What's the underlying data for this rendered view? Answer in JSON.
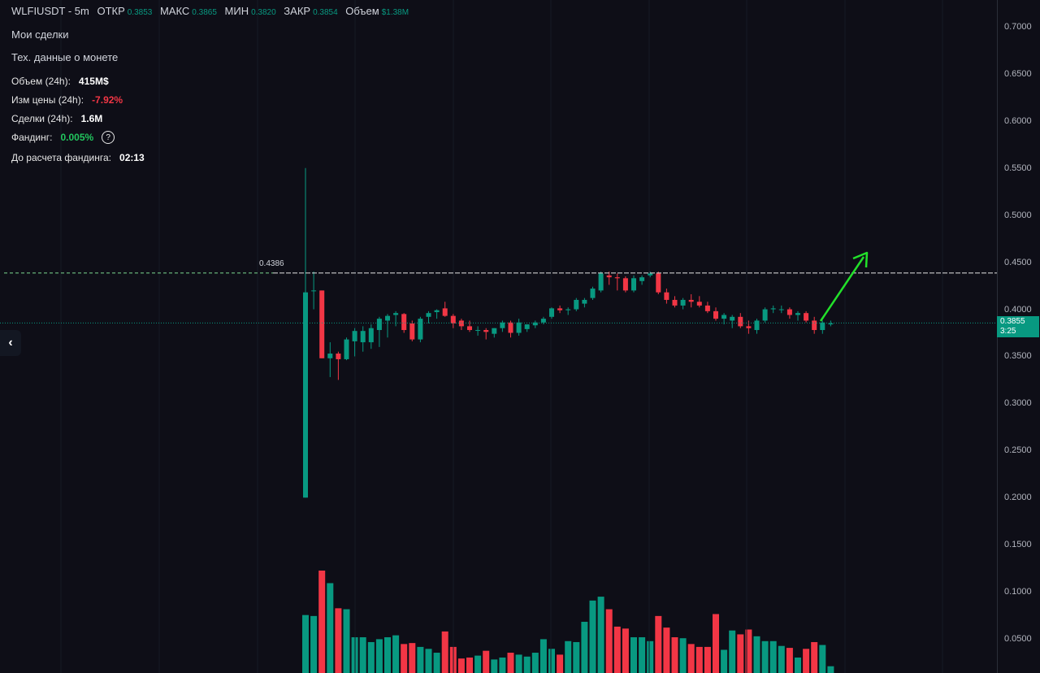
{
  "header": {
    "symbol": "WLFIUSDT - 5m",
    "open_label": "ОТКР",
    "open_value": "0.3853",
    "high_label": "МАКС",
    "high_value": "0.3865",
    "low_label": "МИН",
    "low_value": "0.3820",
    "close_label": "ЗАКР",
    "close_value": "0.3854",
    "volume_label": "Объем",
    "volume_value": "$1.38M"
  },
  "menu": {
    "my_trades": "Мои сделки",
    "coin_data": "Тех. данные о монете"
  },
  "stats": {
    "volume_label": "Объем (24h):",
    "volume_value": "415M$",
    "change_label": "Изм цены  (24h):",
    "change_value": "-7.92%",
    "trades_label": "Сделки (24h):",
    "trades_value": "1.6M",
    "funding_label": "Фандинг:",
    "funding_value": "0.005%",
    "funding_help": "?",
    "countdown_label": "До расчета фандинга:",
    "countdown_value": "02:13"
  },
  "collapse_icon": "chevron-left-icon",
  "line_label": "0.4386",
  "last_price": {
    "price": "0.3855",
    "timer": "3:25"
  },
  "colors": {
    "up": "#089981",
    "down": "#f23645",
    "arrow": "#22e02a",
    "background": "#0e0e17"
  },
  "chart_data": {
    "type": "candlestick",
    "timeframe": "5m",
    "y_ticks": [
      "0.7000",
      "0.6500",
      "0.6000",
      "0.5500",
      "0.5000",
      "0.4500",
      "0.4000",
      "0.3500",
      "0.3000",
      "0.2500",
      "0.2000",
      "0.1500",
      "0.1000",
      "0.0500"
    ],
    "ylim": [
      0.0,
      0.72
    ],
    "horizontal_line": 0.4386,
    "current_price": 0.3855,
    "candles": [
      {
        "o": 0.2,
        "h": 0.55,
        "l": 0.2,
        "c": 0.418,
        "v": 0.06
      },
      {
        "o": 0.42,
        "h": 0.44,
        "l": 0.4,
        "c": 0.42,
        "v": 0.059
      },
      {
        "o": 0.42,
        "h": 0.42,
        "l": 0.348,
        "c": 0.348,
        "v": 0.106
      },
      {
        "o": 0.348,
        "h": 0.365,
        "l": 0.328,
        "c": 0.353,
        "v": 0.093
      },
      {
        "o": 0.353,
        "h": 0.355,
        "l": 0.325,
        "c": 0.347,
        "v": 0.067
      },
      {
        "o": 0.347,
        "h": 0.37,
        "l": 0.346,
        "c": 0.368,
        "v": 0.066
      },
      {
        "o": 0.366,
        "h": 0.38,
        "l": 0.35,
        "c": 0.377,
        "v": 0.037
      },
      {
        "o": 0.365,
        "h": 0.382,
        "l": 0.355,
        "c": 0.377,
        "v": 0.037
      },
      {
        "o": 0.365,
        "h": 0.384,
        "l": 0.358,
        "c": 0.38,
        "v": 0.032
      },
      {
        "o": 0.378,
        "h": 0.392,
        "l": 0.36,
        "c": 0.39,
        "v": 0.035
      },
      {
        "o": 0.388,
        "h": 0.395,
        "l": 0.37,
        "c": 0.393,
        "v": 0.037
      },
      {
        "o": 0.394,
        "h": 0.398,
        "l": 0.382,
        "c": 0.396,
        "v": 0.039
      },
      {
        "o": 0.395,
        "h": 0.396,
        "l": 0.375,
        "c": 0.378,
        "v": 0.03
      },
      {
        "o": 0.385,
        "h": 0.388,
        "l": 0.366,
        "c": 0.368,
        "v": 0.031
      },
      {
        "o": 0.368,
        "h": 0.392,
        "l": 0.365,
        "c": 0.39,
        "v": 0.027
      },
      {
        "o": 0.392,
        "h": 0.398,
        "l": 0.385,
        "c": 0.396,
        "v": 0.025
      },
      {
        "o": 0.397,
        "h": 0.4,
        "l": 0.39,
        "c": 0.399,
        "v": 0.021
      },
      {
        "o": 0.401,
        "h": 0.408,
        "l": 0.392,
        "c": 0.393,
        "v": 0.043
      },
      {
        "o": 0.393,
        "h": 0.395,
        "l": 0.38,
        "c": 0.385,
        "v": 0.027
      },
      {
        "o": 0.388,
        "h": 0.39,
        "l": 0.378,
        "c": 0.382,
        "v": 0.015
      },
      {
        "o": 0.382,
        "h": 0.388,
        "l": 0.376,
        "c": 0.378,
        "v": 0.016
      },
      {
        "o": 0.378,
        "h": 0.382,
        "l": 0.372,
        "c": 0.378,
        "v": 0.018
      },
      {
        "o": 0.378,
        "h": 0.38,
        "l": 0.368,
        "c": 0.376,
        "v": 0.023
      },
      {
        "o": 0.374,
        "h": 0.38,
        "l": 0.37,
        "c": 0.38,
        "v": 0.014
      },
      {
        "o": 0.38,
        "h": 0.388,
        "l": 0.376,
        "c": 0.386,
        "v": 0.016
      },
      {
        "o": 0.386,
        "h": 0.388,
        "l": 0.37,
        "c": 0.375,
        "v": 0.021
      },
      {
        "o": 0.375,
        "h": 0.39,
        "l": 0.372,
        "c": 0.386,
        "v": 0.019
      },
      {
        "o": 0.379,
        "h": 0.384,
        "l": 0.376,
        "c": 0.384,
        "v": 0.017
      },
      {
        "o": 0.383,
        "h": 0.388,
        "l": 0.38,
        "c": 0.386,
        "v": 0.021
      },
      {
        "o": 0.386,
        "h": 0.392,
        "l": 0.384,
        "c": 0.39,
        "v": 0.035
      },
      {
        "o": 0.392,
        "h": 0.402,
        "l": 0.39,
        "c": 0.401,
        "v": 0.025
      },
      {
        "o": 0.401,
        "h": 0.404,
        "l": 0.396,
        "c": 0.399,
        "v": 0.019
      },
      {
        "o": 0.399,
        "h": 0.402,
        "l": 0.394,
        "c": 0.4,
        "v": 0.033
      },
      {
        "o": 0.4,
        "h": 0.412,
        "l": 0.398,
        "c": 0.41,
        "v": 0.032
      },
      {
        "o": 0.406,
        "h": 0.412,
        "l": 0.402,
        "c": 0.41,
        "v": 0.053
      },
      {
        "o": 0.412,
        "h": 0.424,
        "l": 0.41,
        "c": 0.422,
        "v": 0.075
      },
      {
        "o": 0.42,
        "h": 0.44,
        "l": 0.418,
        "c": 0.438,
        "v": 0.079
      },
      {
        "o": 0.436,
        "h": 0.44,
        "l": 0.426,
        "c": 0.434,
        "v": 0.066
      },
      {
        "o": 0.434,
        "h": 0.438,
        "l": 0.42,
        "c": 0.433,
        "v": 0.048
      },
      {
        "o": 0.433,
        "h": 0.435,
        "l": 0.418,
        "c": 0.42,
        "v": 0.046
      },
      {
        "o": 0.42,
        "h": 0.436,
        "l": 0.418,
        "c": 0.433,
        "v": 0.037
      },
      {
        "o": 0.43,
        "h": 0.436,
        "l": 0.426,
        "c": 0.434,
        "v": 0.037
      },
      {
        "o": 0.436,
        "h": 0.44,
        "l": 0.434,
        "c": 0.438,
        "v": 0.033
      },
      {
        "o": 0.438,
        "h": 0.44,
        "l": 0.416,
        "c": 0.418,
        "v": 0.059
      },
      {
        "o": 0.418,
        "h": 0.422,
        "l": 0.406,
        "c": 0.41,
        "v": 0.047
      },
      {
        "o": 0.41,
        "h": 0.414,
        "l": 0.402,
        "c": 0.404,
        "v": 0.037
      },
      {
        "o": 0.404,
        "h": 0.412,
        "l": 0.4,
        "c": 0.41,
        "v": 0.036
      },
      {
        "o": 0.41,
        "h": 0.416,
        "l": 0.402,
        "c": 0.408,
        "v": 0.03
      },
      {
        "o": 0.408,
        "h": 0.414,
        "l": 0.402,
        "c": 0.404,
        "v": 0.027
      },
      {
        "o": 0.404,
        "h": 0.408,
        "l": 0.396,
        "c": 0.398,
        "v": 0.027
      },
      {
        "o": 0.398,
        "h": 0.402,
        "l": 0.388,
        "c": 0.39,
        "v": 0.061
      },
      {
        "o": 0.39,
        "h": 0.396,
        "l": 0.384,
        "c": 0.394,
        "v": 0.024
      },
      {
        "o": 0.388,
        "h": 0.394,
        "l": 0.38,
        "c": 0.392,
        "v": 0.044
      },
      {
        "o": 0.392,
        "h": 0.396,
        "l": 0.38,
        "c": 0.382,
        "v": 0.04
      },
      {
        "o": 0.382,
        "h": 0.388,
        "l": 0.374,
        "c": 0.38,
        "v": 0.045
      },
      {
        "o": 0.378,
        "h": 0.39,
        "l": 0.374,
        "c": 0.388,
        "v": 0.038
      },
      {
        "o": 0.388,
        "h": 0.402,
        "l": 0.386,
        "c": 0.4,
        "v": 0.033
      },
      {
        "o": 0.4,
        "h": 0.404,
        "l": 0.396,
        "c": 0.401,
        "v": 0.033
      },
      {
        "o": 0.4,
        "h": 0.404,
        "l": 0.396,
        "c": 0.4,
        "v": 0.028
      },
      {
        "o": 0.4,
        "h": 0.402,
        "l": 0.39,
        "c": 0.394,
        "v": 0.026
      },
      {
        "o": 0.394,
        "h": 0.398,
        "l": 0.388,
        "c": 0.396,
        "v": 0.016
      },
      {
        "o": 0.396,
        "h": 0.398,
        "l": 0.386,
        "c": 0.388,
        "v": 0.025
      },
      {
        "o": 0.388,
        "h": 0.392,
        "l": 0.374,
        "c": 0.378,
        "v": 0.032
      },
      {
        "o": 0.378,
        "h": 0.388,
        "l": 0.374,
        "c": 0.386,
        "v": 0.029
      },
      {
        "o": 0.384,
        "h": 0.388,
        "l": 0.382,
        "c": 0.385,
        "v": 0.007
      }
    ]
  }
}
